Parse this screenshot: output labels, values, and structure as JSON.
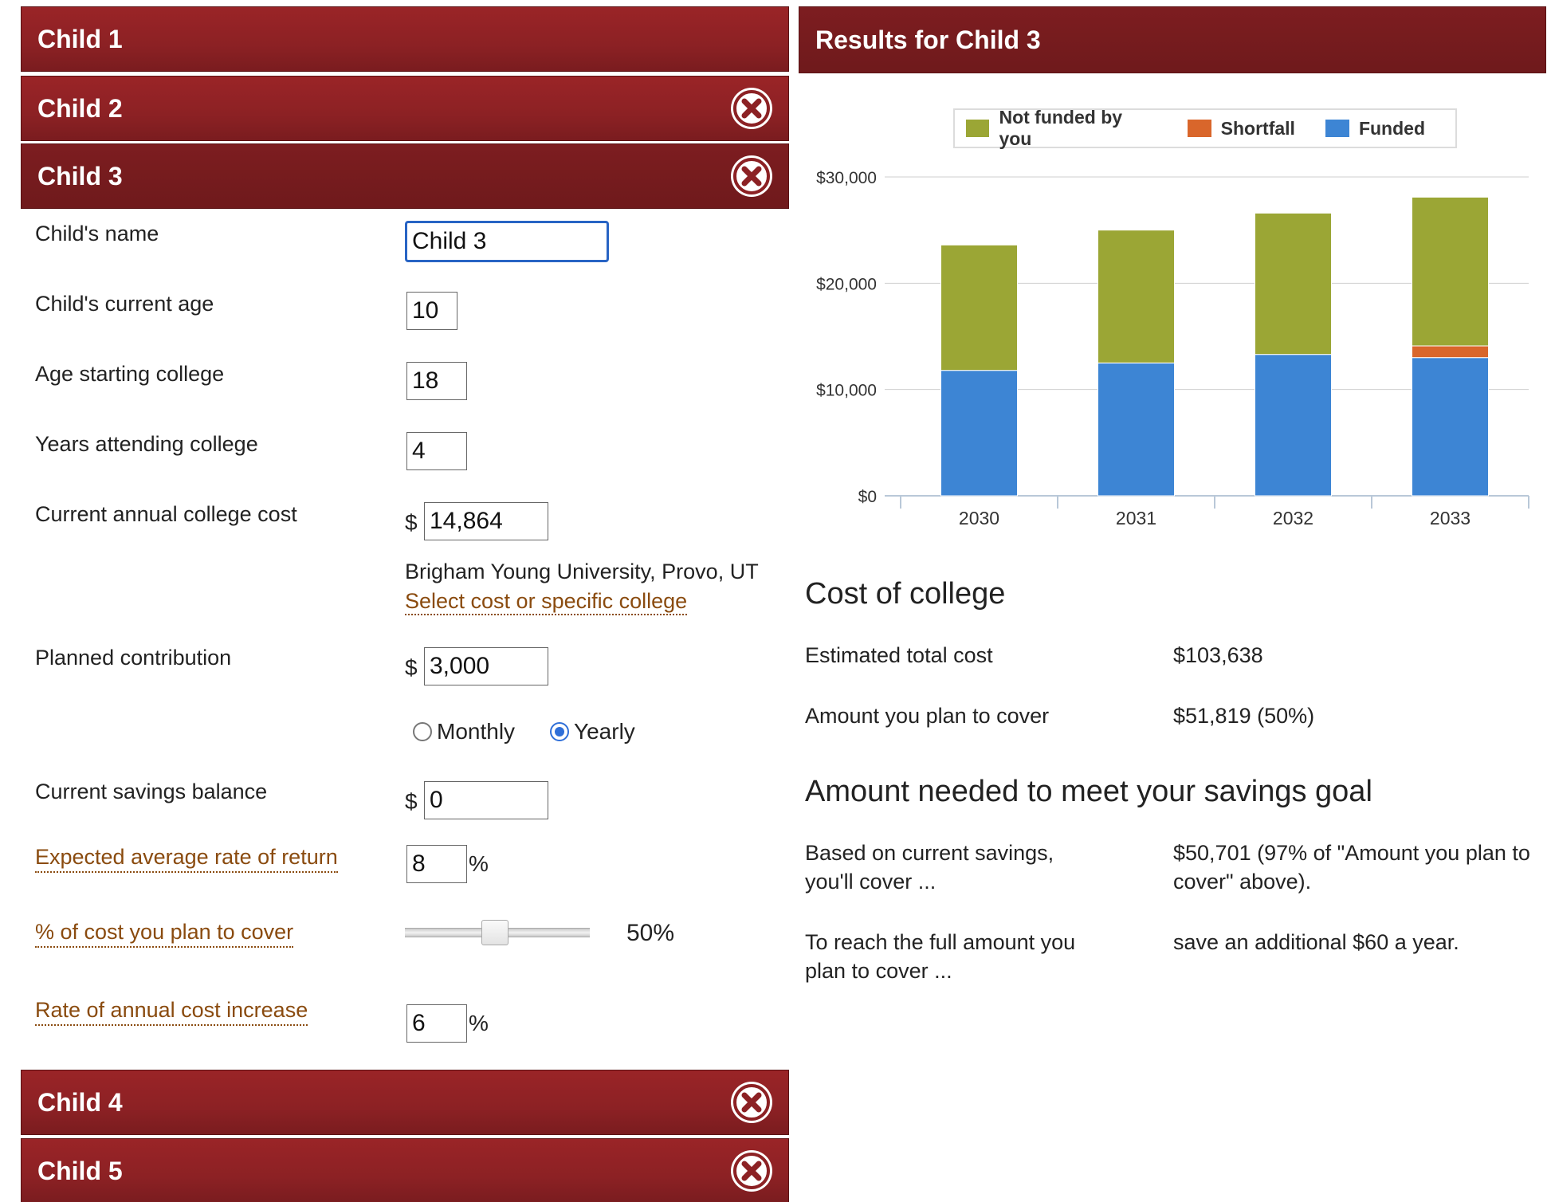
{
  "children_panels": [
    {
      "title": "Child 1",
      "closable": false
    },
    {
      "title": "Child 2",
      "closable": true
    },
    {
      "title": "Child 3",
      "closable": true,
      "open": true
    },
    {
      "title": "Child 4",
      "closable": true
    },
    {
      "title": "Child 5",
      "closable": true
    }
  ],
  "icons": {
    "close": "close-circle-x-icon"
  },
  "colors": {
    "accent": "#8c2124",
    "link": "#8a4b0f",
    "not_funded": "#9ba635",
    "shortfall": "#d9662b",
    "funded": "#3d85d4"
  },
  "form": {
    "name": {
      "label": "Child's name",
      "value": "Child 3"
    },
    "age": {
      "label": "Child's current age",
      "value": "10"
    },
    "start_age": {
      "label": "Age starting college",
      "value": "18"
    },
    "years": {
      "label": "Years attending college",
      "value": "4"
    },
    "cost": {
      "label": "Current annual college cost",
      "currency": "$",
      "value": "14,864"
    },
    "college": {
      "name": "Brigham Young University, Provo, UT",
      "link": "Select cost or specific college"
    },
    "contribution": {
      "label": "Planned contribution",
      "currency": "$",
      "value": "3,000"
    },
    "frequency": {
      "monthly": "Monthly",
      "yearly": "Yearly",
      "selected": "Yearly"
    },
    "savings": {
      "label": "Current savings balance",
      "currency": "$",
      "value": "0"
    },
    "return_rate": {
      "label": "Expected average rate of return",
      "value": "8",
      "unit": "%"
    },
    "cover": {
      "label": "% of cost you plan to cover",
      "value": 0.5,
      "display": "50%"
    },
    "increase": {
      "label": "Rate of annual cost increase",
      "value": "6",
      "unit": "%"
    }
  },
  "results": {
    "title": "Results for Child 3",
    "cost_heading": "Cost of college",
    "estimated_label": "Estimated total cost",
    "estimated_value": "$103,638",
    "cover_label": "Amount you plan to cover",
    "cover_value": "$51,819 (50%)",
    "goal_heading": "Amount needed to meet your savings goal",
    "current_label": "Based on current savings, you'll cover ...",
    "current_value": "$50,701 (97% of \"Amount you plan to cover\" above).",
    "full_label": "To reach the full amount you plan to cover ...",
    "full_value": "save an additional $60 a year."
  },
  "chart_data": {
    "type": "bar",
    "stacked": true,
    "categories": [
      "2030",
      "2031",
      "2032",
      "2033"
    ],
    "series": [
      {
        "name": "Funded",
        "color": "#3d85d4",
        "values": [
          11800,
          12500,
          13300,
          13000
        ]
      },
      {
        "name": "Shortfall",
        "color": "#d9662b",
        "values": [
          0,
          0,
          0,
          1100
        ]
      },
      {
        "name": "Not funded by you",
        "color": "#9ba635",
        "values": [
          11800,
          12500,
          13300,
          14000
        ]
      }
    ],
    "legend_order": [
      "Not funded by you",
      "Shortfall",
      "Funded"
    ],
    "yticks": [
      "$0",
      "$10,000",
      "$20,000",
      "$30,000"
    ],
    "ylim": [
      0,
      30000
    ],
    "grid": true,
    "legend_position": "top"
  }
}
